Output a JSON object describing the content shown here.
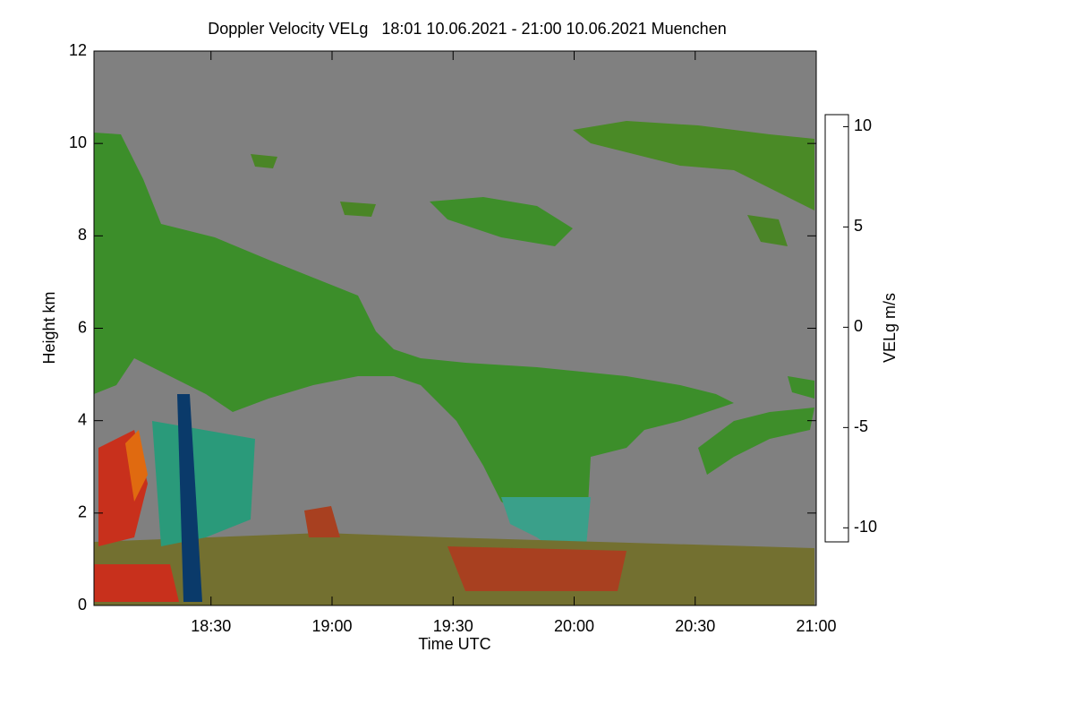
{
  "chart_data": {
    "type": "heatmap",
    "title": "Doppler Velocity VELg   18:01 10.06.2021 - 21:00 10.06.2021 Muenchen",
    "x_label": "Time UTC",
    "y_label": "Height km",
    "xlim": [
      1,
      180
    ],
    "xticks": [
      {
        "value": 30,
        "label": "18:30"
      },
      {
        "value": 60,
        "label": "19:00"
      },
      {
        "value": 90,
        "label": "19:30"
      },
      {
        "value": 120,
        "label": "20:00"
      },
      {
        "value": 150,
        "label": "20:30"
      },
      {
        "value": 180,
        "label": "21:00"
      }
    ],
    "ylim": [
      0,
      12
    ],
    "yticks": [
      0,
      2,
      4,
      6,
      8,
      10,
      12
    ],
    "background": "#808080",
    "colorbar": {
      "label": "VELg m/s",
      "lim": [
        -10.7,
        10.6
      ],
      "ticks": [
        -10,
        -5,
        0,
        5,
        10
      ],
      "colors": [
        "#000000",
        "#0a2a6a",
        "#1a9a8a",
        "#0a9a10",
        "#5a7a10",
        "#c01010",
        "#e07010",
        "#ffff00"
      ]
    }
  }
}
